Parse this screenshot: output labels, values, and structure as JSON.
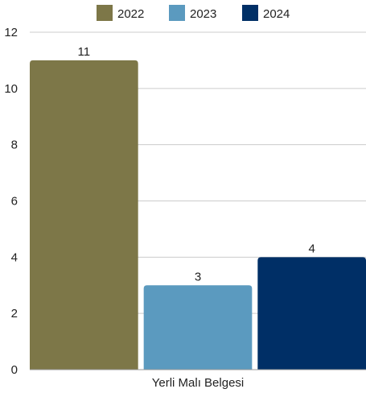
{
  "chart_data": {
    "type": "bar",
    "categories": [
      "Yerli Malı Belgesi"
    ],
    "series": [
      {
        "name": "2022",
        "values": [
          11
        ],
        "color": "#7d7748"
      },
      {
        "name": "2023",
        "values": [
          3
        ],
        "color": "#5b9abf"
      },
      {
        "name": "2024",
        "values": [
          4
        ],
        "color": "#002f66"
      }
    ],
    "y_ticks": [
      "0",
      "2",
      "4",
      "6",
      "8",
      "10",
      "12"
    ],
    "ylim": [
      0,
      12
    ],
    "grid": true,
    "legend_position": "top"
  }
}
